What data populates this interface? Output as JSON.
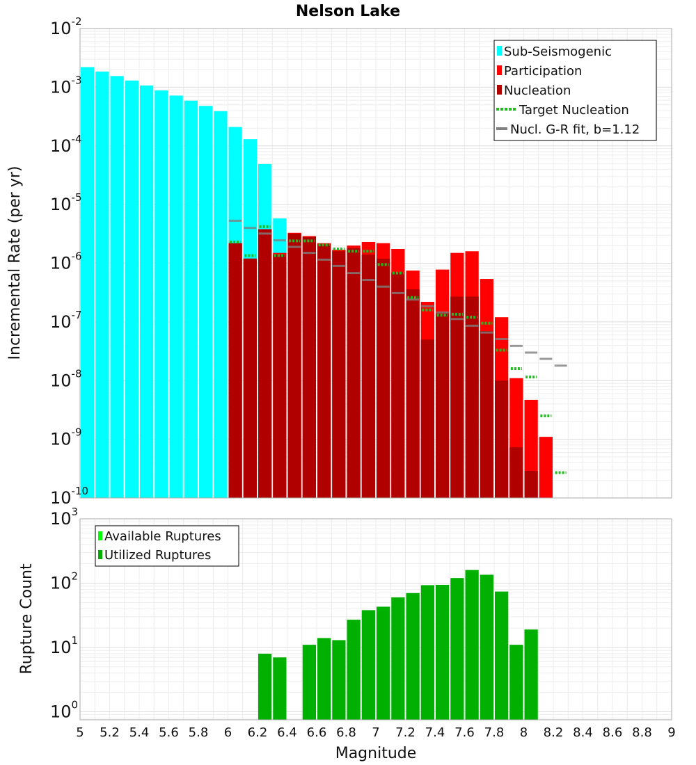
{
  "colors": {
    "sub_seismogenic": "#00ffff",
    "participation": "#ff0000",
    "nucleation": "#b00000",
    "target_nucleation": "#22bb22",
    "gr_fit": "#808080",
    "available_ruptures": "#00ff00",
    "utilized_ruptures": "#00b000"
  },
  "chart_data": [
    {
      "type": "bar",
      "title": "Nelson Lake",
      "xlabel": "",
      "ylabel": "Incremental Rate (per yr)",
      "yscale": "log",
      "ylim": [
        1e-10,
        0.01
      ],
      "xlim": [
        5,
        9
      ],
      "bin_width": 0.1,
      "y_tick_labels": [
        {
          "base": "10",
          "exp": "-2"
        },
        {
          "base": "10",
          "exp": "-3"
        },
        {
          "base": "10",
          "exp": "-4"
        },
        {
          "base": "10",
          "exp": "-5"
        },
        {
          "base": "10",
          "exp": "-6"
        },
        {
          "base": "10",
          "exp": "-7"
        },
        {
          "base": "10",
          "exp": "-8"
        },
        {
          "base": "10",
          "exp": "-9"
        },
        {
          "base": "10",
          "exp": "-10"
        }
      ],
      "legend": {
        "position": "top-right",
        "entries": [
          "Sub-Seismogenic",
          "Participation",
          "Nucleation",
          "Target Nucleation",
          "Nucl. G-R fit, b=1.12"
        ]
      },
      "series": [
        {
          "name": "Sub-Seismogenic",
          "x": [
            5.05,
            5.15,
            5.25,
            5.35,
            5.45,
            5.55,
            5.65,
            5.75,
            5.85,
            5.95,
            6.05,
            6.15,
            6.25,
            6.35
          ],
          "values": [
            0.0022,
            0.00185,
            0.00155,
            0.0013,
            0.00107,
            0.00088,
            0.00072,
            0.00059,
            0.00048,
            0.00039,
            0.00021,
            0.00013,
            4.9e-05,
            5.8e-06
          ]
        },
        {
          "name": "Participation",
          "x": [
            6.05,
            6.15,
            6.25,
            6.35,
            6.45,
            6.55,
            6.65,
            6.75,
            6.85,
            6.95,
            7.05,
            7.15,
            7.25,
            7.35,
            7.45,
            7.55,
            7.65,
            7.75,
            7.85,
            7.95,
            8.05,
            8.15
          ],
          "values": [
            2.2e-06,
            1.2e-06,
            3.8e-06,
            1.5e-06,
            3.3e-06,
            2.9e-06,
            2.2e-06,
            1.7e-06,
            2e-06,
            2.3e-06,
            2.2e-06,
            1.75e-06,
            7.5e-07,
            2.2e-07,
            7.8e-07,
            1.5e-06,
            1.6e-06,
            5.4e-07,
            1.2e-07,
            1.1e-08,
            4.7e-09,
            1.1e-09
          ]
        },
        {
          "name": "Nucleation",
          "x": [
            6.05,
            6.15,
            6.25,
            6.35,
            6.45,
            6.55,
            6.65,
            6.75,
            6.85,
            6.95,
            7.05,
            7.15,
            7.25,
            7.35,
            7.45,
            7.55,
            7.65,
            7.75,
            7.85,
            7.95,
            8.05,
            8.15
          ],
          "values": [
            2.2e-06,
            1.2e-06,
            3.8e-06,
            1.4e-06,
            3.2e-06,
            2.8e-06,
            2.1e-06,
            1.6e-06,
            1.8e-06,
            1.4e-06,
            1.2e-06,
            7e-07,
            3.6e-07,
            5e-08,
            1.5e-07,
            2.7e-07,
            2.7e-07,
            7e-08,
            1e-08,
            7.3e-10,
            2.9e-10,
            1e-10
          ]
        },
        {
          "name": "Target Nucleation",
          "x": [
            6.05,
            6.15,
            6.25,
            6.35,
            6.45,
            6.55,
            6.65,
            6.75,
            6.85,
            6.95,
            7.05,
            7.15,
            7.25,
            7.35,
            7.45,
            7.55,
            7.65,
            7.75,
            7.85,
            7.95,
            8.05,
            8.15,
            8.25
          ],
          "values": [
            2.3e-06,
            1.35e-06,
            4.2e-06,
            1.35e-06,
            2.4e-06,
            2.4e-06,
            2.05e-06,
            1.75e-06,
            1.6e-06,
            1.6e-06,
            9.5e-07,
            6.8e-07,
            2.6e-07,
            1.6e-07,
            1.3e-07,
            1.35e-07,
            1.2e-07,
            9.5e-08,
            3.3e-08,
            1.6e-08,
            1.15e-08,
            2.5e-09,
            2.7e-10
          ]
        },
        {
          "name": "Nucl. G-R fit, b=1.12",
          "x": [
            6.05,
            6.15,
            6.25,
            6.35,
            6.45,
            6.55,
            6.65,
            6.75,
            6.85,
            6.95,
            7.05,
            7.15,
            7.25,
            7.35,
            7.45,
            7.55,
            7.65,
            7.75,
            7.85,
            7.95,
            8.05,
            8.15,
            8.25
          ],
          "values": [
            5.3e-06,
            4e-06,
            3.2e-06,
            2.45e-06,
            1.9e-06,
            1.5e-06,
            1.15e-06,
            9e-07,
            6.8e-07,
            5.2e-07,
            4e-07,
            3.1e-07,
            2.4e-07,
            1.85e-07,
            1.45e-07,
            1.12e-07,
            8.6e-08,
            6.6e-08,
            5.1e-08,
            3.9e-08,
            3e-08,
            2.35e-08,
            1.8e-08
          ]
        }
      ]
    },
    {
      "type": "bar",
      "title": "",
      "xlabel": "Magnitude",
      "ylabel": "Rupture Count",
      "yscale": "log",
      "ylim": [
        0.75,
        1000
      ],
      "xlim": [
        5,
        9
      ],
      "bin_width": 0.1,
      "x_tick_labels": [
        "5",
        "5.2",
        "5.4",
        "5.6",
        "5.8",
        "6",
        "6.2",
        "6.4",
        "6.6",
        "6.8",
        "7",
        "7.2",
        "7.4",
        "7.6",
        "7.8",
        "8",
        "8.2",
        "8.4",
        "8.6",
        "8.8",
        "9"
      ],
      "y_tick_labels": [
        {
          "base": "10",
          "exp": "3"
        },
        {
          "base": "10",
          "exp": "2"
        },
        {
          "base": "10",
          "exp": "1"
        },
        {
          "base": "10",
          "exp": "0"
        }
      ],
      "legend": {
        "position": "top-left",
        "entries": [
          "Available Ruptures",
          "Utilized Ruptures"
        ]
      },
      "series": [
        {
          "name": "Available Ruptures",
          "x": [
            6.25,
            6.35,
            6.55,
            6.65,
            6.75,
            6.85,
            6.95,
            7.05,
            7.15,
            7.25,
            7.35,
            7.45,
            7.55,
            7.65,
            7.75,
            7.85,
            7.95,
            8.05
          ],
          "values": [
            8,
            7,
            11,
            14,
            13,
            27,
            38,
            43,
            60,
            70,
            93,
            94,
            120,
            160,
            135,
            74,
            11,
            19
          ]
        },
        {
          "name": "Utilized Ruptures",
          "x": [
            6.25,
            6.35,
            6.55,
            6.65,
            6.75,
            6.85,
            6.95,
            7.05,
            7.15,
            7.25,
            7.35,
            7.45,
            7.55,
            7.65,
            7.75,
            7.85,
            7.95,
            8.05
          ],
          "values": [
            8,
            7,
            11,
            14,
            13,
            27,
            38,
            43,
            60,
            70,
            93,
            94,
            120,
            160,
            135,
            74,
            11,
            19
          ]
        }
      ]
    }
  ]
}
